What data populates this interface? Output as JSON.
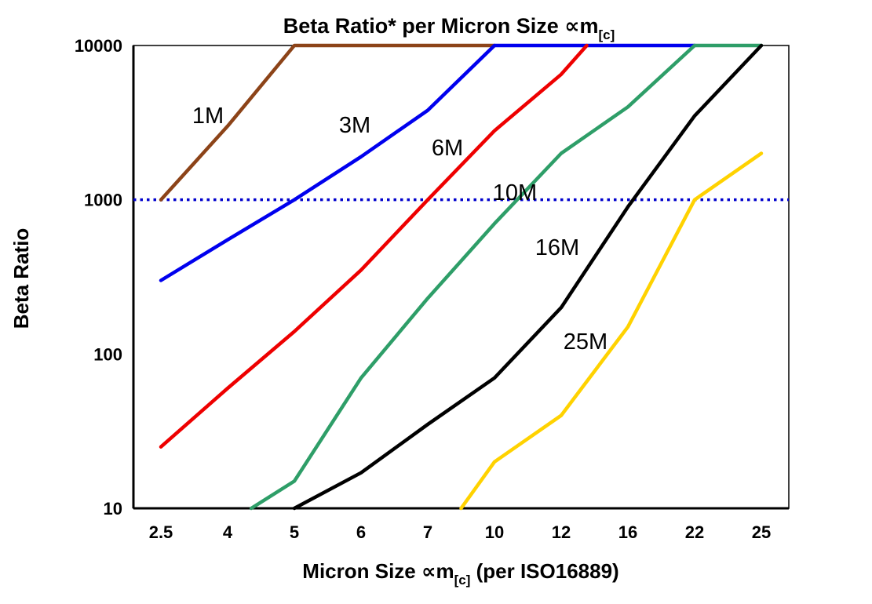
{
  "labels": {
    "title_main": "Beta Ratio* per Micron Size ∝m",
    "title_sub": "[c]",
    "y_axis": "Beta Ratio",
    "x_axis_main": "Micron Size ∝m",
    "x_axis_sub": "[c]",
    "x_axis_post": " (per ISO16889)"
  },
  "chart_data": {
    "type": "line",
    "title": "Beta Ratio* per Micron Size ∝m[c]",
    "xlabel": "Micron Size ∝m[c] (per ISO16889)",
    "ylabel": "Beta Ratio",
    "x_categories": [
      "2.5",
      "4",
      "5",
      "6",
      "7",
      "10",
      "12",
      "16",
      "22",
      "25"
    ],
    "y_scale": "log",
    "ylim": [
      10,
      10000
    ],
    "y_ticks": [
      "10",
      "100",
      "1000",
      "10000"
    ],
    "grid": false,
    "legend": "inline-labels",
    "reference_line": {
      "y": 1000,
      "color": "#0000cc",
      "style": "dotted"
    },
    "series": [
      {
        "name": "1M",
        "color": "#8c4318",
        "values": [
          1000,
          3000,
          10000,
          10000,
          10000,
          10000,
          null,
          null,
          null,
          null
        ],
        "label": {
          "fx": 0.114,
          "fy": 0.151
        }
      },
      {
        "name": "3M",
        "color": "#0000ee",
        "values": [
          300,
          550,
          1000,
          1900,
          3800,
          10000,
          10000,
          10000,
          10000,
          null
        ],
        "label": {
          "fx": 0.338,
          "fy": 0.172
        }
      },
      {
        "name": "6M",
        "color": "#ee0000",
        "values": [
          25,
          60,
          140,
          350,
          1000,
          2800,
          6500,
          20000,
          null,
          null
        ],
        "label": {
          "fx": 0.479,
          "fy": 0.22
        }
      },
      {
        "name": "10M",
        "color": "#2e9e68",
        "label_color": "#00a550",
        "values": [
          null,
          8,
          15,
          70,
          230,
          700,
          2000,
          4000,
          10000,
          10000
        ],
        "label": {
          "fx": 0.582,
          "fy": 0.317
        }
      },
      {
        "name": "16M",
        "color": "#000000",
        "values": [
          null,
          null,
          10,
          17,
          35,
          70,
          200,
          900,
          3500,
          10000
        ],
        "label": {
          "fx": 0.647,
          "fy": 0.436
        }
      },
      {
        "name": "25M",
        "color": "#ffd200",
        "values": [
          null,
          null,
          null,
          null,
          5,
          20,
          40,
          150,
          1000,
          2000
        ],
        "label": {
          "fx": 0.69,
          "fy": 0.639
        }
      }
    ]
  }
}
